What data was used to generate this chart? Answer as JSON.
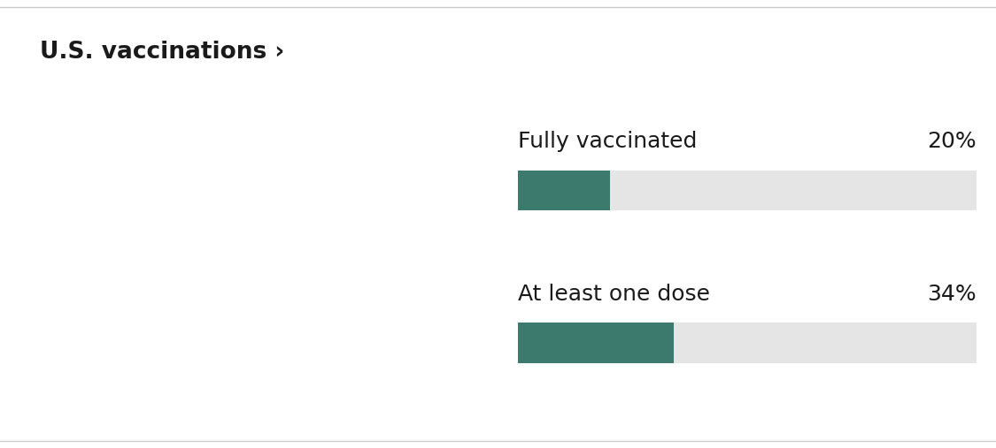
{
  "title": "U.S. vaccinations ›",
  "title_fontsize": 19,
  "title_fontweight": "bold",
  "background_color": "#ffffff",
  "border_color": "#cccccc",
  "bar_color": "#3d7a6e",
  "bar_bg_color": "#e5e5e5",
  "text_color": "#1a1a1a",
  "metrics": [
    {
      "label": "Fully vaccinated",
      "value": 20,
      "pct_text": "20%"
    },
    {
      "label": "At least one dose",
      "value": 34,
      "pct_text": "34%"
    }
  ],
  "label_fontsize": 18,
  "pct_fontsize": 18,
  "map_state_colors": {
    "Alabama": "#b8d4cf",
    "Alaska": "#4d8c82",
    "Arizona": "#b0ceca",
    "Arkansas": "#c5dcd8",
    "California": "#7aada6",
    "Colorado": "#5a9690",
    "Connecticut": "#6aa09a",
    "Delaware": "#8ab8b2",
    "Florida": "#b5d0cc",
    "Georgia": "#bdd6d1",
    "Hawaii": "#8ab8b2",
    "Idaho": "#c8ddd9",
    "Illinois": "#8ab8b2",
    "Indiana": "#b8d2cc",
    "Iowa": "#8ab8b2",
    "Kansas": "#a0c8c0",
    "Kentucky": "#b0cfc8",
    "Louisiana": "#c8ddd9",
    "Maine": "#2d6660",
    "Maryland": "#6aa09a",
    "Massachusetts": "#5a9690",
    "Michigan": "#b8d2cc",
    "Minnesota": "#7aada5",
    "Mississippi": "#c8ddd9",
    "Missouri": "#b0cfc8",
    "Montana": "#8ab8b2",
    "Nebraska": "#8ab8b2",
    "Nevada": "#c8ddd9",
    "New Hampshire": "#6aa09a",
    "New Jersey": "#6aa09a",
    "New Mexico": "#2d6a60",
    "New York": "#7aada5",
    "North Carolina": "#b0cfc8",
    "North Dakota": "#7aada5",
    "Ohio": "#b0cfc8",
    "Oklahoma": "#b8d2cc",
    "Oregon": "#8ab8b2",
    "Pennsylvania": "#8ab8b2",
    "Rhode Island": "#6aa09a",
    "South Carolina": "#bdd6d1",
    "South Dakota": "#2d6a60",
    "Tennessee": "#c8ddd9",
    "Texas": "#bdd6d1",
    "Utah": "#c8ddd9",
    "Vermont": "#6aa09a",
    "Virginia": "#a0c8c0",
    "Washington": "#7aada5",
    "West Virginia": "#b8d2cc",
    "Wisconsin": "#8ab8b2",
    "Wyoming": "#d8e8e4",
    "Puerto Rico": "#cce0dc"
  },
  "default_state_color": "#d0e4e0"
}
